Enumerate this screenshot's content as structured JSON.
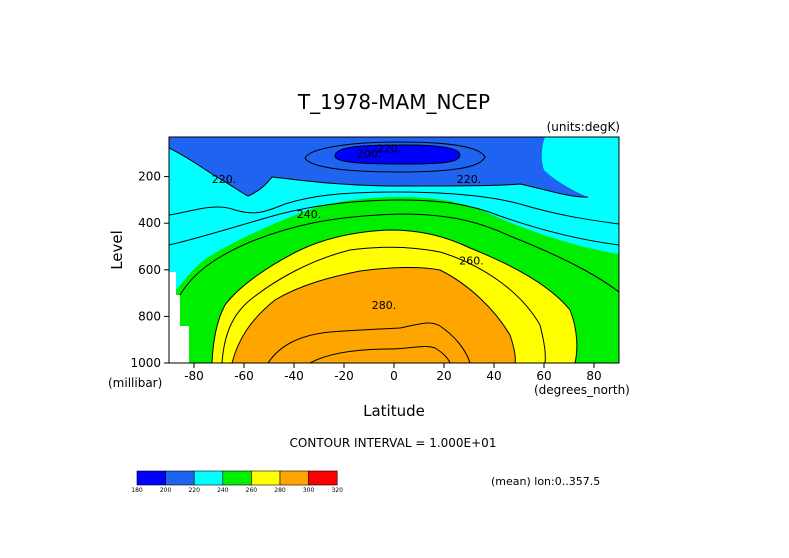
{
  "chart_data": {
    "type": "contour",
    "title": "T_1978-MAM_NCEP",
    "units_label": "(units:degK)",
    "xlabel": "Latitude",
    "xunit_label": "(degrees_north)",
    "ylabel": "Level",
    "yunit_label": "(millibar)",
    "xlim": [
      -90,
      90
    ],
    "ylim": [
      1000,
      30
    ],
    "y_inverted": true,
    "xticks": [
      -80,
      -60,
      -40,
      -20,
      0,
      20,
      40,
      60,
      80
    ],
    "yticks": [
      200,
      400,
      600,
      800,
      1000
    ],
    "contour_interval_label": "CONTOUR INTERVAL = 1.000E+01",
    "footer_label": "(mean) lon:0..357.5",
    "contour_labels": [
      {
        "text": "220.",
        "lat": -2,
        "level": 80
      },
      {
        "text": "200.",
        "lat": -10,
        "level": 100
      },
      {
        "text": "220.",
        "lat": -68,
        "level": 210
      },
      {
        "text": "220.",
        "lat": 30,
        "level": 210
      },
      {
        "text": "240.",
        "lat": -34,
        "level": 360
      },
      {
        "text": "260.",
        "lat": 31,
        "level": 560
      },
      {
        "text": "280.",
        "lat": -4,
        "level": 750
      }
    ],
    "colorbar": {
      "bounds": [
        "180",
        "200",
        "220",
        "240",
        "260",
        "280",
        "300",
        "320"
      ],
      "colors": [
        "#0000ff",
        "#1e64f0",
        "#00ffff",
        "#00ee00",
        "#ffff00",
        "#ffa500",
        "#ff0000"
      ]
    },
    "fill_colors": {
      "below_200": "#0000ff",
      "200_220": "#1e64f0",
      "220_240": "#00ffff",
      "240_260": "#00ee00",
      "260_280": "#ffff00",
      "280_300": "#ffa500"
    }
  }
}
